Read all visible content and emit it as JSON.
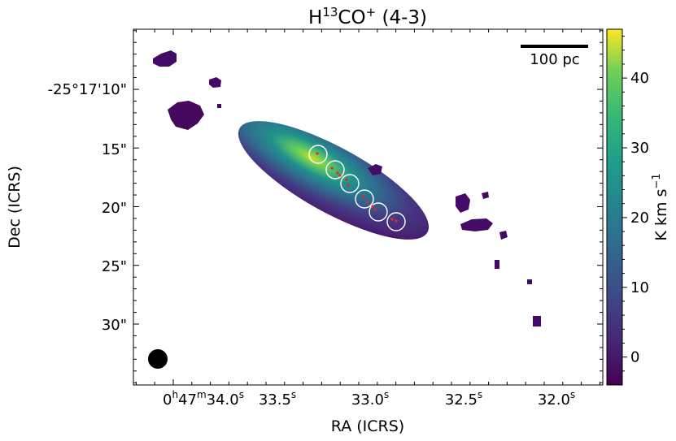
{
  "chart_data": {
    "type": "heatmap",
    "title": {
      "prefix": "H",
      "superscript_mass": "13",
      "middle": "CO",
      "superscript_charge": "+",
      "suffix": " (4-3)"
    },
    "xlabel": "RA (ICRS)",
    "ylabel": "Dec (ICRS)",
    "colorbar": {
      "label": "K km s",
      "label_exponent": "−1",
      "ticks": [
        "0",
        "10",
        "20",
        "30",
        "40"
      ],
      "range": [
        -4,
        47
      ],
      "colormap": "viridis"
    },
    "x_ticks": [
      {
        "text_parts": [
          [
            "0",
            ""
          ],
          [
            "h",
            "sup"
          ],
          [
            "47",
            ""
          ],
          [
            "m",
            "sup"
          ],
          [
            "34.0",
            ""
          ],
          [
            "s",
            "sup"
          ]
        ]
      },
      {
        "text_parts": [
          [
            "33.5",
            ""
          ],
          [
            "s",
            "sup"
          ]
        ]
      },
      {
        "text_parts": [
          [
            "33.0",
            ""
          ],
          [
            "s",
            "sup"
          ]
        ]
      },
      {
        "text_parts": [
          [
            "32.5",
            ""
          ],
          [
            "s",
            "sup"
          ]
        ]
      },
      {
        "text_parts": [
          [
            "32.0",
            ""
          ],
          [
            "s",
            "sup"
          ]
        ]
      }
    ],
    "y_ticks": [
      "-25°17'10\"",
      "15\"",
      "20\"",
      "25\"",
      "30\""
    ],
    "scale_bar_label": "100 pc",
    "regions": {
      "circles": 6,
      "marker_color": "#e8281e"
    }
  }
}
